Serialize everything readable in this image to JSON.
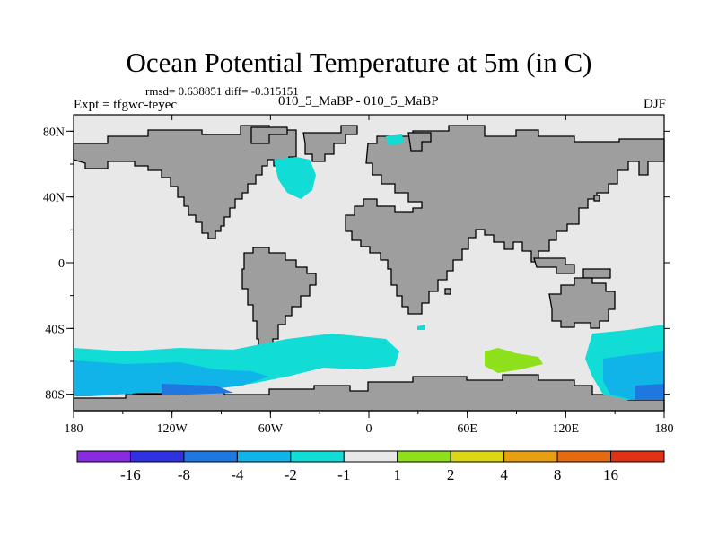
{
  "header": {
    "title": "Ocean Potential Temperature at 5m (in C)",
    "stats": "rmsd= 0.638851 diff= -0.315151",
    "experiment": "Expt = tfgwc-teyec",
    "experiment_pair": "010_5_MaBP - 010_5_MaBP",
    "season": "DJF"
  },
  "axes": {
    "lon_labels": [
      "180",
      "120W",
      "60W",
      "0",
      "60E",
      "120E",
      "180"
    ],
    "lat_labels": [
      "80N",
      "40N",
      "0",
      "40S",
      "80S"
    ]
  },
  "colorbar": {
    "labels": [
      "-16",
      "-8",
      "-4",
      "-2",
      "-1",
      "1",
      "2",
      "4",
      "8",
      "16"
    ],
    "colors": [
      "#8a2be2",
      "#2e32e0",
      "#1e78e0",
      "#10b4e8",
      "#12dcd6",
      "#e8e8e8",
      "#8ee01a",
      "#dcd614",
      "#e8a010",
      "#e66a10",
      "#e03214"
    ]
  },
  "map_colors": {
    "ocean": "#e8e8e8",
    "land": "#9e9e9e"
  }
}
